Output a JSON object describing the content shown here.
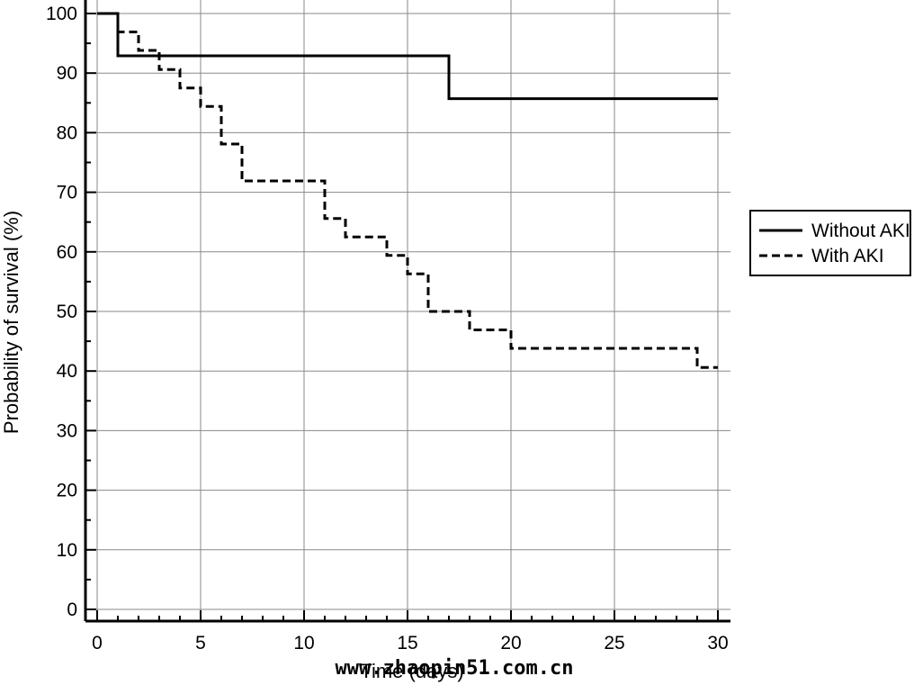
{
  "chart_data": {
    "type": "line",
    "step": true,
    "title": "",
    "xlabel": "Time (days)",
    "ylabel": "Probability of survival (%)",
    "xlim": [
      0,
      30
    ],
    "ylim": [
      0,
      100
    ],
    "xticks": [
      0,
      5,
      10,
      15,
      20,
      25,
      30
    ],
    "yticks": [
      0,
      10,
      20,
      30,
      40,
      50,
      60,
      70,
      80,
      90,
      100
    ],
    "grid": true,
    "legend_position": "right",
    "series": [
      {
        "name": "Without AKI",
        "style": "solid",
        "color": "#000000",
        "x": [
          0,
          1,
          17,
          30
        ],
        "y": [
          100,
          92.9,
          85.7,
          85.7
        ]
      },
      {
        "name": "With AKI",
        "style": "dashed",
        "color": "#000000",
        "x": [
          0,
          1,
          2,
          3,
          4,
          5,
          6,
          7,
          11,
          12,
          14,
          15,
          16,
          18,
          20,
          29,
          30
        ],
        "y": [
          100,
          96.9,
          93.8,
          90.6,
          87.5,
          84.4,
          78.1,
          71.9,
          65.6,
          62.5,
          59.4,
          56.3,
          50.0,
          46.9,
          43.8,
          40.6,
          40.6
        ]
      }
    ]
  },
  "watermark": "www.zhaopin51.com.cn"
}
